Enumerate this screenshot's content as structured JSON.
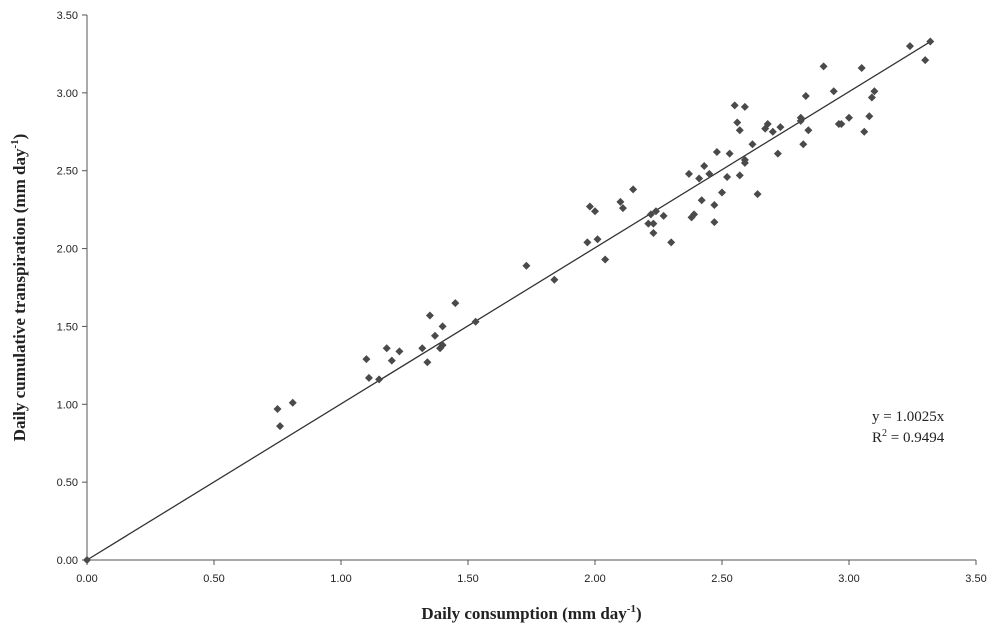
{
  "chart_data": {
    "type": "scatter",
    "xlabel": "Daily consumption (mm day",
    "xlabel_sup": "-1",
    "xlabel_end": ")",
    "ylabel": "Daily cumulative transpiration (mm day",
    "ylabel_sup": "-1",
    "ylabel_end": ")",
    "xlim": [
      0,
      3.5
    ],
    "ylim": [
      0,
      3.5
    ],
    "xticks": [
      "0.00",
      "0.50",
      "1.00",
      "1.50",
      "2.00",
      "2.50",
      "3.00",
      "3.50"
    ],
    "yticks": [
      "0.00",
      "0.50",
      "1.00",
      "1.50",
      "2.00",
      "2.50",
      "3.00",
      "3.50"
    ],
    "grid": false,
    "marker_color": "#4a4a4a",
    "line_color": "#333333",
    "trendline": {
      "slope": 1.0025,
      "x_range": [
        0,
        3.32
      ]
    },
    "equation": "y = 1.0025x",
    "r2_prefix": "R",
    "r2_sup": "2",
    "r2_rest": " = 0.9494",
    "points": [
      [
        0,
        0
      ],
      [
        0.75,
        0.97
      ],
      [
        0.76,
        0.86
      ],
      [
        0.81,
        1.01
      ],
      [
        1.1,
        1.29
      ],
      [
        1.11,
        1.17
      ],
      [
        1.15,
        1.16
      ],
      [
        1.18,
        1.36
      ],
      [
        1.2,
        1.28
      ],
      [
        1.23,
        1.34
      ],
      [
        1.32,
        1.36
      ],
      [
        1.34,
        1.27
      ],
      [
        1.35,
        1.57
      ],
      [
        1.37,
        1.44
      ],
      [
        1.39,
        1.36
      ],
      [
        1.4,
        1.38
      ],
      [
        1.4,
        1.5
      ],
      [
        1.45,
        1.65
      ],
      [
        1.53,
        1.53
      ],
      [
        1.73,
        1.89
      ],
      [
        1.84,
        1.8
      ],
      [
        1.97,
        2.04
      ],
      [
        1.98,
        2.27
      ],
      [
        2.0,
        2.24
      ],
      [
        2.01,
        2.06
      ],
      [
        2.04,
        1.93
      ],
      [
        2.1,
        2.3
      ],
      [
        2.11,
        2.26
      ],
      [
        2.15,
        2.38
      ],
      [
        2.21,
        2.16
      ],
      [
        2.22,
        2.22
      ],
      [
        2.23,
        2.1
      ],
      [
        2.23,
        2.16
      ],
      [
        2.24,
        2.24
      ],
      [
        2.27,
        2.21
      ],
      [
        2.3,
        2.04
      ],
      [
        2.37,
        2.48
      ],
      [
        2.38,
        2.2
      ],
      [
        2.39,
        2.22
      ],
      [
        2.41,
        2.45
      ],
      [
        2.42,
        2.31
      ],
      [
        2.43,
        2.53
      ],
      [
        2.45,
        2.48
      ],
      [
        2.47,
        2.17
      ],
      [
        2.47,
        2.28
      ],
      [
        2.48,
        2.62
      ],
      [
        2.5,
        2.36
      ],
      [
        2.52,
        2.46
      ],
      [
        2.53,
        2.61
      ],
      [
        2.55,
        2.92
      ],
      [
        2.56,
        2.81
      ],
      [
        2.57,
        2.47
      ],
      [
        2.57,
        2.76
      ],
      [
        2.59,
        2.57
      ],
      [
        2.59,
        2.55
      ],
      [
        2.59,
        2.91
      ],
      [
        2.62,
        2.67
      ],
      [
        2.64,
        2.35
      ],
      [
        2.67,
        2.77
      ],
      [
        2.68,
        2.8
      ],
      [
        2.7,
        2.75
      ],
      [
        2.72,
        2.61
      ],
      [
        2.73,
        2.78
      ],
      [
        2.81,
        2.82
      ],
      [
        2.81,
        2.84
      ],
      [
        2.82,
        2.67
      ],
      [
        2.83,
        2.98
      ],
      [
        2.84,
        2.76
      ],
      [
        2.9,
        3.17
      ],
      [
        2.94,
        3.01
      ],
      [
        2.96,
        2.8
      ],
      [
        2.97,
        2.8
      ],
      [
        3.0,
        2.84
      ],
      [
        3.05,
        3.16
      ],
      [
        3.06,
        2.75
      ],
      [
        3.08,
        2.85
      ],
      [
        3.09,
        2.97
      ],
      [
        3.1,
        3.01
      ],
      [
        3.24,
        3.3
      ],
      [
        3.3,
        3.21
      ],
      [
        3.32,
        3.33
      ]
    ]
  }
}
